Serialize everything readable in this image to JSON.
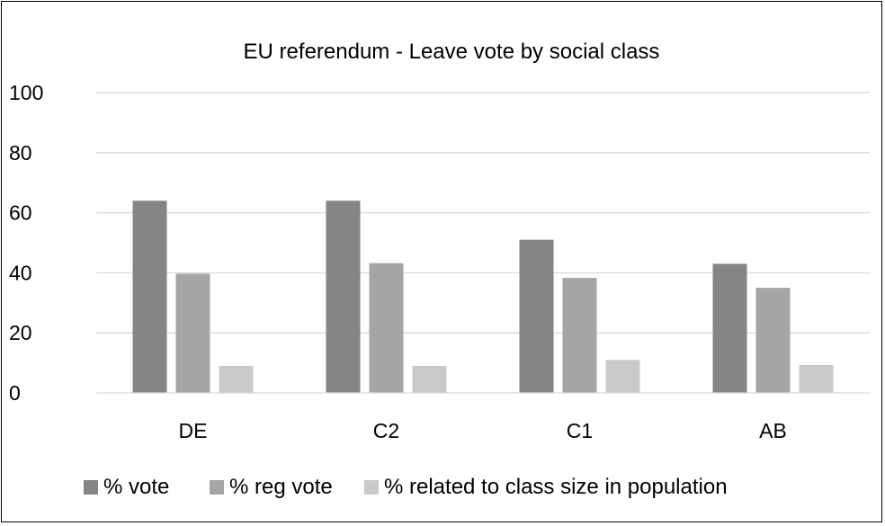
{
  "chart_data": {
    "type": "bar",
    "title": "EU referendum - Leave vote by social class",
    "xlabel": "",
    "ylabel": "",
    "categories": [
      "DE",
      "C2",
      "C1",
      "AB"
    ],
    "ylim": [
      0,
      100
    ],
    "yticks": [
      0,
      20,
      40,
      60,
      80,
      100
    ],
    "grid": true,
    "legend_position": "bottom",
    "series": [
      {
        "name": "% vote",
        "values": [
          64,
          64,
          51,
          43
        ],
        "color": "#858585"
      },
      {
        "name": "% reg vote",
        "values": [
          39.7,
          43.2,
          38.3,
          35
        ],
        "color": "#a5a5a5"
      },
      {
        "name": "% related to class size in  population",
        "values": [
          9,
          9,
          11,
          9.3
        ],
        "color": "#c9c9c9"
      }
    ]
  }
}
